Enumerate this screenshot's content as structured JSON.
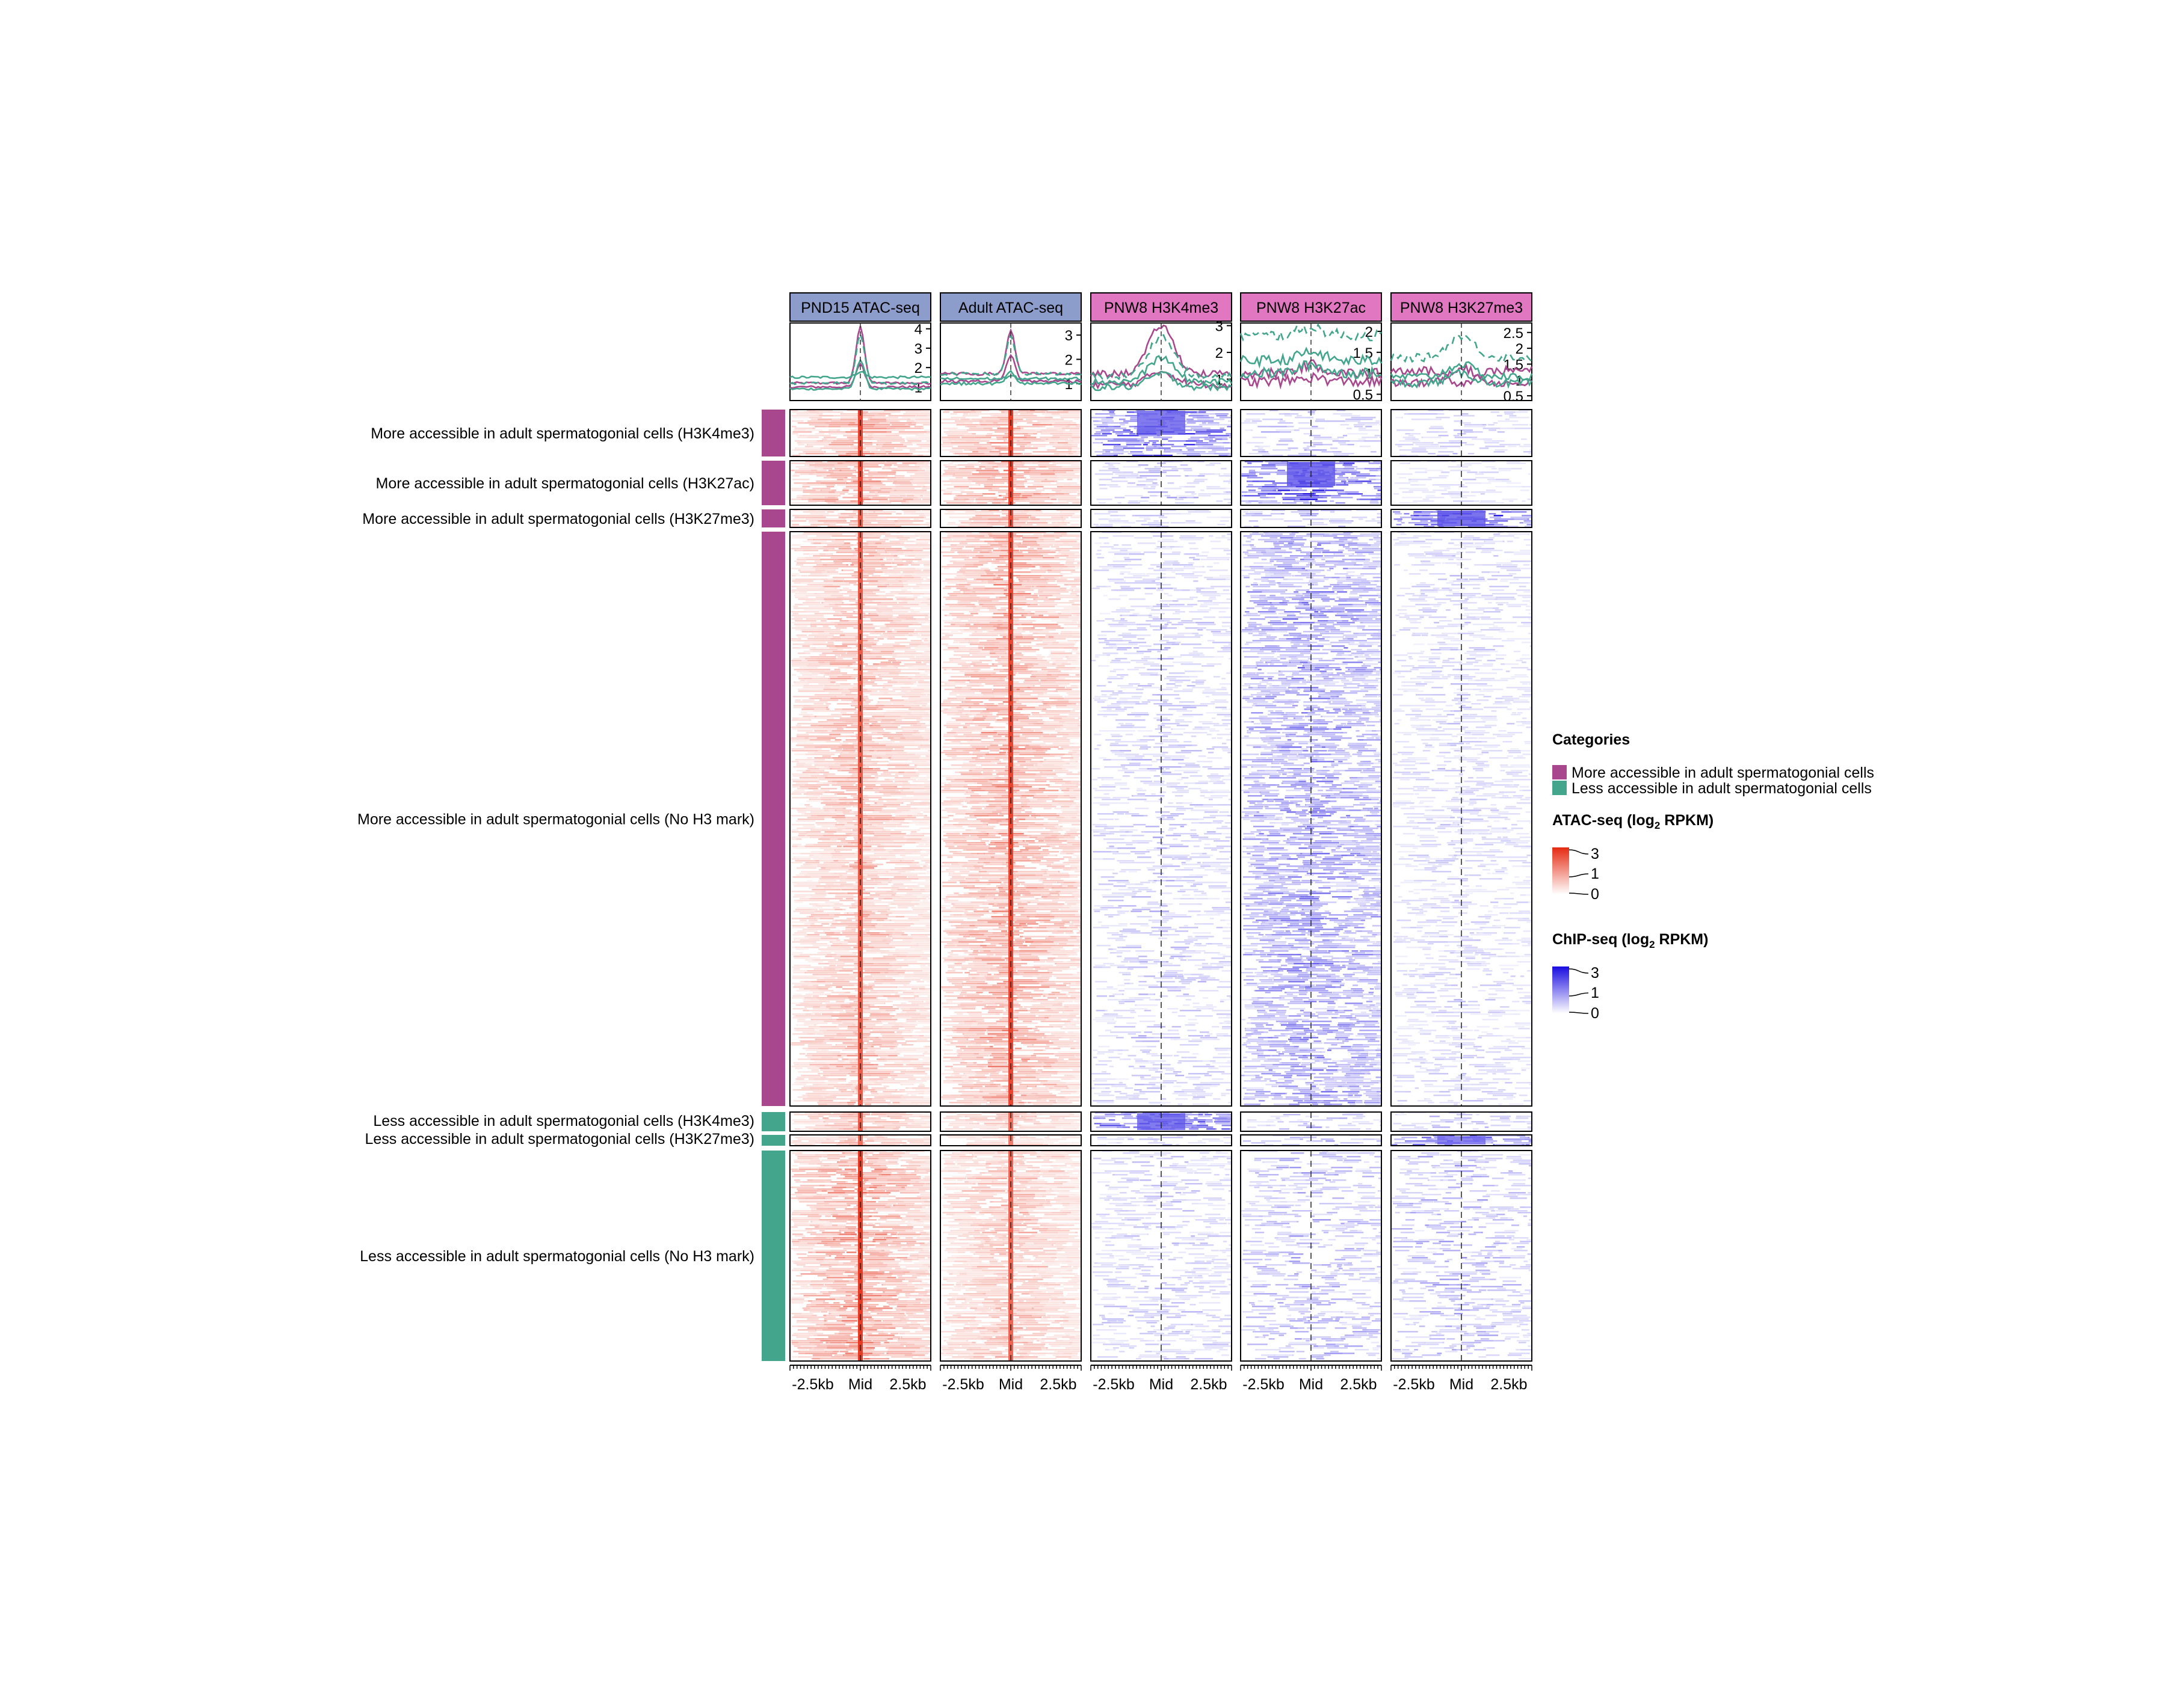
{
  "chart_data": {
    "type": "heatmap",
    "columns": [
      {
        "name": "PND15 ATAC-seq",
        "assay": "ATAC",
        "header_color": "#8c9ccb",
        "profile_y_ticks": [
          "1",
          "2",
          "3",
          "4"
        ],
        "profile_ylim": [
          0.3,
          4.3
        ]
      },
      {
        "name": "Adult ATAC-seq",
        "assay": "ATAC",
        "header_color": "#8c9ccb",
        "profile_y_ticks": [
          "1",
          "2",
          "3"
        ],
        "profile_ylim": [
          0.3,
          3.5
        ]
      },
      {
        "name": "PNW8 H3K4me3",
        "assay": "ChIP",
        "header_color": "#e177c0",
        "profile_y_ticks": [
          "1",
          "2",
          "3"
        ],
        "profile_ylim": [
          0.2,
          3.1
        ]
      },
      {
        "name": "PNW8 H3K27ac",
        "assay": "ChIP",
        "header_color": "#e177c0",
        "profile_y_ticks": [
          "0.5",
          "1",
          "1.5",
          "2"
        ],
        "profile_ylim": [
          0.35,
          2.2
        ]
      },
      {
        "name": "PNW8 H3K27me3",
        "assay": "ChIP",
        "header_color": "#e177c0",
        "profile_y_ticks": [
          "0.5",
          "1",
          "1.5",
          "2",
          "2.5"
        ],
        "profile_ylim": [
          0.35,
          2.8
        ]
      }
    ],
    "x_tick_labels": [
      "-2.5kb",
      "Mid",
      "2.5kb"
    ],
    "x_range_kb": [
      -2.5,
      2.5
    ],
    "row_groups": [
      {
        "label": "More accessible in adult spermatogonial cells (H3K4me3)",
        "category": "More accessible in adult spermatogonial cells",
        "intensity": [
          0.55,
          0.6,
          0.85,
          0.35,
          0.25
        ]
      },
      {
        "label": "More accessible in adult spermatogonial cells (H3K27ac)",
        "category": "More accessible in adult spermatogonial cells",
        "intensity": [
          0.55,
          0.6,
          0.35,
          0.9,
          0.2
        ]
      },
      {
        "label": "More accessible in adult spermatogonial cells (H3K27me3)",
        "category": "More accessible in adult spermatogonial cells",
        "intensity": [
          0.45,
          0.5,
          0.25,
          0.4,
          0.9
        ]
      },
      {
        "label": "More accessible in adult spermatogonial cells (No H3 mark)",
        "category": "More accessible in adult spermatogonial cells",
        "intensity": [
          0.45,
          0.55,
          0.3,
          0.55,
          0.25
        ]
      },
      {
        "label": "Less accessible in adult spermatogonial cells (H3K4me3)",
        "category": "Less accessible in adult spermatogonial cells",
        "intensity": [
          0.45,
          0.35,
          0.85,
          0.35,
          0.35
        ]
      },
      {
        "label": "Less accessible in adult spermatogonial cells (H3K27me3)",
        "category": "Less accessible in adult spermatogonial cells",
        "intensity": [
          0.35,
          0.3,
          0.25,
          0.35,
          0.8
        ]
      },
      {
        "label": "Less accessible in adult spermatogonial cells (No H3 mark)",
        "category": "Less accessible in adult spermatogonial cells",
        "intensity": [
          0.6,
          0.4,
          0.3,
          0.4,
          0.4
        ]
      }
    ],
    "profile_series": [
      {
        "group": 0,
        "color": "#a8478e",
        "dashed": false,
        "peak": [
          4.1,
          3.2,
          3.0,
          1.2,
          0.9
        ],
        "base": [
          1.2,
          1.4,
          1.2,
          1.0,
          1.3
        ]
      },
      {
        "group": 1,
        "color": "#42a58c",
        "dashed": true,
        "peak": [
          3.7,
          3.0,
          2.6,
          2.1,
          2.4
        ],
        "base": [
          1.2,
          1.4,
          1.1,
          1.9,
          1.7
        ]
      },
      {
        "group": 3,
        "color": "#a8478e",
        "dashed": false,
        "peak": [
          2.2,
          2.2,
          1.3,
          0.9,
          1.4
        ],
        "base": [
          1.0,
          1.1,
          0.8,
          0.8,
          0.9
        ]
      },
      {
        "group": 4,
        "color": "#42a58c",
        "dashed": false,
        "peak": [
          2.4,
          1.5,
          1.8,
          1.5,
          1.5
        ],
        "base": [
          0.9,
          1.0,
          0.9,
          1.3,
          1.1
        ]
      },
      {
        "group": 6,
        "color": "#42a58c",
        "dashed": false,
        "peak": [
          1.8,
          1.3,
          1.2,
          1.2,
          1.2
        ],
        "base": [
          1.5,
          1.2,
          0.7,
          1.0,
          0.9
        ]
      }
    ],
    "legends": {
      "categories": {
        "title": "Categories",
        "items": [
          {
            "label": "More accessible in adult spermatogonial cells",
            "color": "#a8478e"
          },
          {
            "label": "Less accessible in adult spermatogonial cells",
            "color": "#42a58c"
          }
        ]
      },
      "atac": {
        "title": "ATAC-seq (log",
        "subscript": "2",
        "title_end": " RPKM)",
        "ticks": [
          "3",
          "1",
          "0"
        ],
        "color_high": "#e52a12",
        "color_low": "#ffffff"
      },
      "chip": {
        "title": "ChIP-seq (log",
        "subscript": "2",
        "title_end": " RPKM)",
        "ticks": [
          "3",
          "1",
          "0"
        ],
        "color_high": "#1a0ce0",
        "color_low": "#ffffff"
      }
    }
  }
}
